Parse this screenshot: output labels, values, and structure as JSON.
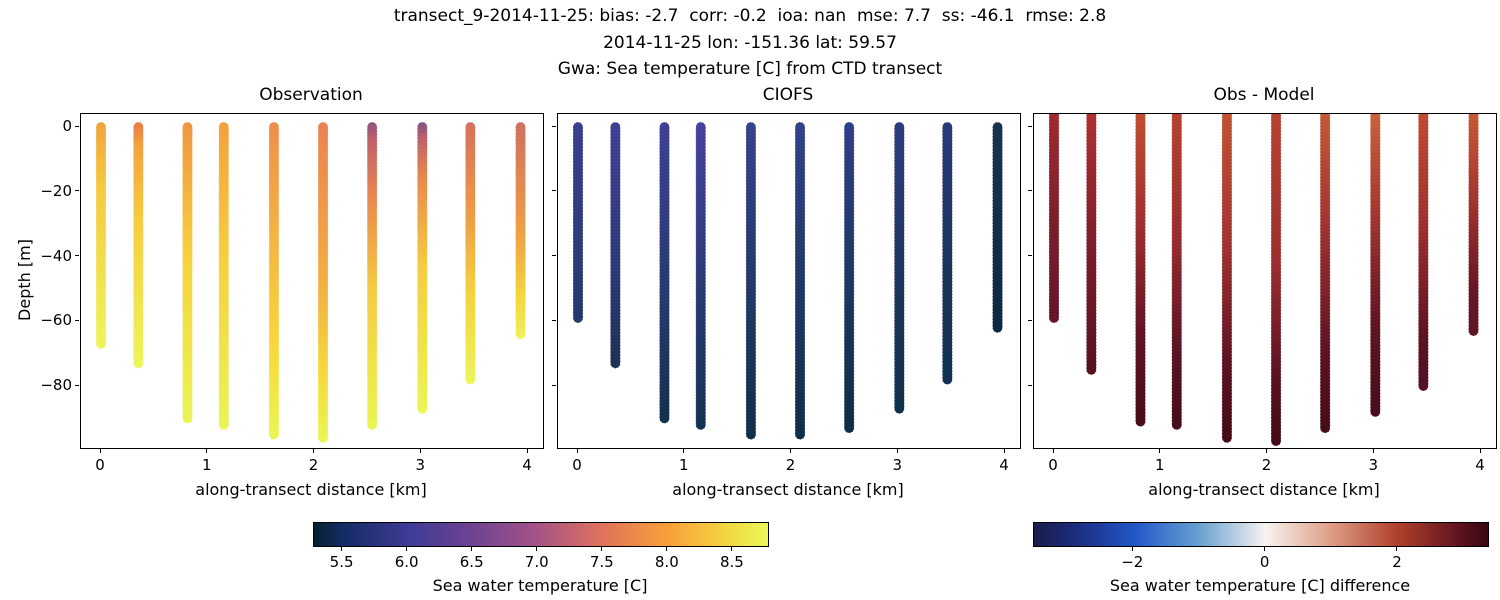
{
  "figure": {
    "title_line1": "transect_9-2014-11-25: bias: -2.7  corr: -0.2  ioa: nan  mse: 7.7  ss: -46.1  rmse: 2.8",
    "title_line2": "2014-11-25 lon: -151.36 lat: 59.57",
    "title_line3": "Gwa: Sea temperature [C] from CTD transect"
  },
  "axes": {
    "xlabel": "along-transect distance [km]",
    "ylabel": "Depth [m]",
    "x_ticks": [
      {
        "value": 0,
        "label": "0"
      },
      {
        "value": 1,
        "label": "1"
      },
      {
        "value": 2,
        "label": "2"
      },
      {
        "value": 3,
        "label": "3"
      },
      {
        "value": 4,
        "label": "4"
      }
    ],
    "y_ticks": [
      {
        "value": 0,
        "label": "0"
      },
      {
        "value": -20,
        "label": "−20"
      },
      {
        "value": -40,
        "label": "−40"
      },
      {
        "value": -60,
        "label": "−60"
      },
      {
        "value": -80,
        "label": "−80"
      }
    ]
  },
  "panels": [
    {
      "title": "Observation",
      "slug": "observation",
      "columns": [
        {
          "x_km": 0.0,
          "top_m": 0,
          "bottom_m": -67,
          "stops": [
            [
              0,
              "#f0a33c"
            ],
            [
              0.3,
              "#f6ca40"
            ],
            [
              1,
              "#edf65c"
            ]
          ]
        },
        {
          "x_km": 0.35,
          "top_m": 0,
          "bottom_m": -73,
          "stops": [
            [
              0,
              "#e87a4b"
            ],
            [
              0.1,
              "#f2a43e"
            ],
            [
              0.4,
              "#f6cd40"
            ],
            [
              1,
              "#edf65c"
            ]
          ]
        },
        {
          "x_km": 0.81,
          "top_m": 0,
          "bottom_m": -90,
          "stops": [
            [
              0,
              "#f0953f"
            ],
            [
              0.45,
              "#f6d23f"
            ],
            [
              1,
              "#eaf557"
            ]
          ]
        },
        {
          "x_km": 1.15,
          "top_m": 0,
          "bottom_m": -92,
          "stops": [
            [
              0,
              "#f2a03c"
            ],
            [
              0.45,
              "#f6d03f"
            ],
            [
              1,
              "#eaf557"
            ]
          ]
        },
        {
          "x_km": 1.62,
          "top_m": 0,
          "bottom_m": -95,
          "stops": [
            [
              0,
              "#ee8e4a"
            ],
            [
              0.5,
              "#f5c340"
            ],
            [
              0.75,
              "#f6dd3d"
            ],
            [
              1,
              "#e9f655"
            ]
          ]
        },
        {
          "x_km": 2.08,
          "top_m": 0,
          "bottom_m": -96,
          "stops": [
            [
              0,
              "#ec8150"
            ],
            [
              0.5,
              "#f2ae42"
            ],
            [
              0.78,
              "#f6d83e"
            ],
            [
              1,
              "#e9f655"
            ]
          ]
        },
        {
          "x_km": 2.54,
          "top_m": 0,
          "bottom_m": -92,
          "stops": [
            [
              0,
              "#8d5380"
            ],
            [
              0.06,
              "#c2606a"
            ],
            [
              0.25,
              "#e88a4e"
            ],
            [
              0.55,
              "#f6cc40"
            ],
            [
              1,
              "#e9f655"
            ]
          ]
        },
        {
          "x_km": 3.01,
          "top_m": 0,
          "bottom_m": -87,
          "stops": [
            [
              0,
              "#7b4f86"
            ],
            [
              0.05,
              "#bb5f6d"
            ],
            [
              0.2,
              "#e98c4c"
            ],
            [
              0.5,
              "#f6cd40"
            ],
            [
              1,
              "#e9f655"
            ]
          ]
        },
        {
          "x_km": 3.46,
          "top_m": 0,
          "bottom_m": -78,
          "stops": [
            [
              0,
              "#d4705e"
            ],
            [
              0.35,
              "#ec9c46"
            ],
            [
              0.65,
              "#f5d13e"
            ],
            [
              1,
              "#ecf65a"
            ]
          ]
        },
        {
          "x_km": 3.93,
          "top_m": 0,
          "bottom_m": -64,
          "stops": [
            [
              0,
              "#d06f60"
            ],
            [
              0.5,
              "#ee9e45"
            ],
            [
              0.8,
              "#f5d53d"
            ],
            [
              1,
              "#eef25f"
            ]
          ]
        }
      ]
    },
    {
      "title": "CIOFS",
      "slug": "ciofs",
      "columns": [
        {
          "x_km": 0.0,
          "top_m": 0,
          "bottom_m": -59,
          "stops": [
            [
              0,
              "#3a3f90"
            ],
            [
              1,
              "#23396a"
            ]
          ]
        },
        {
          "x_km": 0.35,
          "top_m": 0,
          "bottom_m": -73,
          "stops": [
            [
              0,
              "#423f97"
            ],
            [
              0.6,
              "#2c3a77"
            ],
            [
              1,
              "#1c3154"
            ]
          ]
        },
        {
          "x_km": 0.81,
          "top_m": 0,
          "bottom_m": -90,
          "stops": [
            [
              0,
              "#3e4094"
            ],
            [
              0.6,
              "#253a6d"
            ],
            [
              1,
              "#13304c"
            ]
          ]
        },
        {
          "x_km": 1.15,
          "top_m": 0,
          "bottom_m": -92,
          "stops": [
            [
              0,
              "#46429d"
            ],
            [
              0.6,
              "#27396f"
            ],
            [
              1,
              "#133250"
            ]
          ]
        },
        {
          "x_km": 1.62,
          "top_m": 0,
          "bottom_m": -95,
          "stops": [
            [
              0,
              "#36428c"
            ],
            [
              0.6,
              "#1f3863"
            ],
            [
              1,
              "#0f2f4a"
            ]
          ]
        },
        {
          "x_km": 2.08,
          "top_m": 0,
          "bottom_m": -95,
          "stops": [
            [
              0,
              "#32418a"
            ],
            [
              0.6,
              "#1d3760"
            ],
            [
              1,
              "#0e2e48"
            ]
          ]
        },
        {
          "x_km": 2.54,
          "top_m": 0,
          "bottom_m": -93,
          "stops": [
            [
              0,
              "#2f3f85"
            ],
            [
              0.6,
              "#1c355c"
            ],
            [
              1,
              "#0e2c45"
            ]
          ]
        },
        {
          "x_km": 3.01,
          "top_m": 0,
          "bottom_m": -87,
          "stops": [
            [
              0,
              "#2c3d80"
            ],
            [
              0.6,
              "#1b3459"
            ],
            [
              1,
              "#103049"
            ]
          ]
        },
        {
          "x_km": 3.46,
          "top_m": 0,
          "bottom_m": -78,
          "stops": [
            [
              0,
              "#293a7b"
            ],
            [
              0.6,
              "#1b3458"
            ],
            [
              1,
              "#123253"
            ]
          ]
        },
        {
          "x_km": 3.93,
          "top_m": 0,
          "bottom_m": -62,
          "stops": [
            [
              0,
              "#17334f"
            ],
            [
              1,
              "#0d2941"
            ]
          ]
        }
      ]
    },
    {
      "title": "Obs - Model",
      "slug": "obs-model",
      "columns": [
        {
          "x_km": 0.0,
          "top_m": 4,
          "bottom_m": -59,
          "stops": [
            [
              0,
              "#a32a2e"
            ],
            [
              0.5,
              "#7e1f2b"
            ],
            [
              1,
              "#63152a"
            ]
          ]
        },
        {
          "x_km": 0.35,
          "top_m": 4,
          "bottom_m": -75,
          "stops": [
            [
              0,
              "#b03233"
            ],
            [
              0.55,
              "#7a1c2a"
            ],
            [
              1,
              "#561122"
            ]
          ]
        },
        {
          "x_km": 0.81,
          "top_m": 4,
          "bottom_m": -91,
          "stops": [
            [
              0,
              "#c24f30"
            ],
            [
              0.35,
              "#a03130"
            ],
            [
              0.7,
              "#611425"
            ],
            [
              1,
              "#470c1a"
            ]
          ]
        },
        {
          "x_km": 1.15,
          "top_m": 4,
          "bottom_m": -92,
          "stops": [
            [
              0,
              "#b8442f"
            ],
            [
              0.4,
              "#992c2f"
            ],
            [
              0.75,
              "#5c1324"
            ],
            [
              1,
              "#450b19"
            ]
          ]
        },
        {
          "x_km": 1.62,
          "top_m": 4,
          "bottom_m": -96,
          "stops": [
            [
              0,
              "#c25331"
            ],
            [
              0.4,
              "#a23431"
            ],
            [
              0.75,
              "#5e1324"
            ],
            [
              1,
              "#420a17"
            ]
          ]
        },
        {
          "x_km": 2.08,
          "top_m": 4,
          "bottom_m": -97,
          "stops": [
            [
              0,
              "#b8432f"
            ],
            [
              0.45,
              "#9e2f30"
            ],
            [
              0.8,
              "#591123"
            ],
            [
              1,
              "#420a17"
            ]
          ]
        },
        {
          "x_km": 2.54,
          "top_m": 4,
          "bottom_m": -93,
          "stops": [
            [
              0,
              "#c45a36"
            ],
            [
              0.35,
              "#a23431"
            ],
            [
              0.75,
              "#5c1324"
            ],
            [
              1,
              "#440b18"
            ]
          ]
        },
        {
          "x_km": 3.01,
          "top_m": 4,
          "bottom_m": -88,
          "stops": [
            [
              0,
              "#c8653c"
            ],
            [
              0.3,
              "#aa3b31"
            ],
            [
              0.7,
              "#601425"
            ],
            [
              1,
              "#470c1a"
            ]
          ]
        },
        {
          "x_km": 3.46,
          "top_m": 4,
          "bottom_m": -80,
          "stops": [
            [
              0,
              "#c04c30"
            ],
            [
              0.4,
              "#a03130"
            ],
            [
              0.8,
              "#5e1324"
            ],
            [
              1,
              "#511021"
            ]
          ]
        },
        {
          "x_km": 3.93,
          "top_m": 4,
          "bottom_m": -63,
          "stops": [
            [
              0,
              "#c65b36"
            ],
            [
              0.35,
              "#a83a31"
            ],
            [
              0.8,
              "#661626"
            ],
            [
              1,
              "#5c1626"
            ]
          ]
        }
      ]
    }
  ],
  "colorbars": [
    {
      "label": "Sea water temperature [C]",
      "range": [
        5.28,
        8.77
      ],
      "ticks": [
        {
          "value": 5.5,
          "label": "5.5"
        },
        {
          "value": 6.0,
          "label": "6.0"
        },
        {
          "value": 6.5,
          "label": "6.5"
        },
        {
          "value": 7.0,
          "label": "7.0"
        },
        {
          "value": 7.5,
          "label": "7.5"
        },
        {
          "value": 8.0,
          "label": "8.0"
        },
        {
          "value": 8.5,
          "label": "8.5"
        }
      ],
      "gradient": [
        [
          0,
          "#05202f"
        ],
        [
          0.063,
          "#132b63"
        ],
        [
          0.21,
          "#3e3b96"
        ],
        [
          0.35,
          "#6f4391"
        ],
        [
          0.49,
          "#a35387"
        ],
        [
          0.636,
          "#e0735a"
        ],
        [
          0.78,
          "#f8a03a"
        ],
        [
          0.923,
          "#f2dc43"
        ],
        [
          1,
          "#e9f95a"
        ]
      ]
    },
    {
      "label": "Sea water temperature [C] difference",
      "range": [
        -3.5,
        3.36
      ],
      "ticks": [
        {
          "value": -2,
          "label": "−2"
        },
        {
          "value": 0,
          "label": "0"
        },
        {
          "value": 2,
          "label": "2"
        }
      ],
      "gradient": [
        [
          0,
          "#1a1c49"
        ],
        [
          0.1,
          "#1c2f83"
        ],
        [
          0.22,
          "#2156c6"
        ],
        [
          0.36,
          "#659fd0"
        ],
        [
          0.51,
          "#f7f3f0"
        ],
        [
          0.65,
          "#dfa088"
        ],
        [
          0.8,
          "#b0402b"
        ],
        [
          0.94,
          "#5c1220"
        ],
        [
          1,
          "#380810"
        ]
      ]
    }
  ],
  "chart_data": [
    {
      "type": "scatter",
      "title": "Observation",
      "xlabel": "along-transect distance [km]",
      "ylabel": "Depth [m]",
      "xlim": [
        -0.2,
        4.13
      ],
      "ylim": [
        -99,
        4
      ],
      "grid": false,
      "colormap": "thermal (dark navy → indigo → magenta → orange → yellow)",
      "color_label": "Sea water temperature [C]",
      "color_range": [
        5.3,
        8.8
      ],
      "stations_x_km": [
        0,
        0.35,
        0.81,
        1.15,
        1.62,
        2.08,
        2.54,
        3.01,
        3.46,
        3.93
      ],
      "profile_top_m": [
        0,
        0,
        0,
        0,
        0,
        0,
        0,
        0,
        0,
        0
      ],
      "profile_bottom_m": [
        -67,
        -73,
        -90,
        -92,
        -95,
        -96,
        -92,
        -87,
        -78,
        -64
      ],
      "surface_value_C": [
        8.0,
        7.6,
        7.9,
        8.0,
        7.7,
        7.6,
        6.9,
        6.5,
        7.3,
        7.3
      ],
      "bottom_value_C": [
        8.7,
        8.7,
        8.8,
        8.8,
        8.8,
        8.8,
        8.8,
        8.8,
        8.7,
        8.7
      ],
      "note": "10 vertical CTD dot-profiles; temperature increases with depth (orange/purple surface to yellow at bottom)"
    },
    {
      "type": "scatter",
      "title": "CIOFS",
      "xlabel": "along-transect distance [km]",
      "ylabel": "Depth [m]",
      "xlim": [
        -0.2,
        4.13
      ],
      "ylim": [
        -99,
        4
      ],
      "grid": false,
      "colormap": "thermal (dark navy → indigo → magenta → orange → yellow)",
      "color_label": "Sea water temperature [C]",
      "color_range": [
        5.3,
        8.8
      ],
      "stations_x_km": [
        0,
        0.35,
        0.81,
        1.15,
        1.62,
        2.08,
        2.54,
        3.01,
        3.46,
        3.93
      ],
      "profile_top_m": [
        0,
        0,
        0,
        0,
        0,
        0,
        0,
        0,
        0,
        0
      ],
      "profile_bottom_m": [
        -59,
        -73,
        -90,
        -92,
        -95,
        -95,
        -93,
        -87,
        -78,
        -62
      ],
      "surface_value_C": [
        6.1,
        6.1,
        6.1,
        6.1,
        6.0,
        6.0,
        5.9,
        5.9,
        5.9,
        5.6
      ],
      "bottom_value_C": [
        5.7,
        5.5,
        5.4,
        5.4,
        5.4,
        5.4,
        5.4,
        5.4,
        5.5,
        5.4
      ],
      "note": "model profiles, all cold (indigo surface to dark navy bottom)"
    },
    {
      "type": "scatter",
      "title": "Obs - Model",
      "xlabel": "along-transect distance [km]",
      "ylabel": "Depth [m]",
      "xlim": [
        -0.2,
        4.13
      ],
      "ylim": [
        -99,
        4
      ],
      "grid": false,
      "colormap": "balance (dark blue → white → dark red)",
      "color_label": "Sea water temperature [C] difference",
      "color_range": [
        -3.5,
        3.4
      ],
      "stations_x_km": [
        0,
        0.35,
        0.81,
        1.15,
        1.62,
        2.08,
        2.54,
        3.01,
        3.46,
        3.93
      ],
      "profile_top_m": [
        0,
        0,
        0,
        0,
        0,
        0,
        0,
        0,
        0,
        0
      ],
      "profile_bottom_m": [
        -59,
        -75,
        -91,
        -92,
        -96,
        -97,
        -93,
        -88,
        -80,
        -63
      ],
      "surface_value_C": [
        2.6,
        2.8,
        2.3,
        2.4,
        2.2,
        2.4,
        2.1,
        2.0,
        2.3,
        2.1
      ],
      "bottom_value_C": [
        3.0,
        3.2,
        3.3,
        3.3,
        3.4,
        3.4,
        3.3,
        3.3,
        3.2,
        3.1
      ],
      "note": "difference profiles, all positive (red: obs warmer than model), darkening with depth"
    }
  ]
}
